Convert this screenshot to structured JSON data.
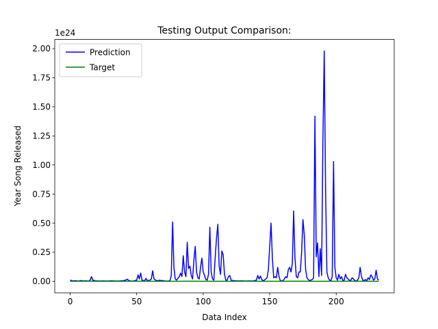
{
  "chart_data": {
    "type": "line",
    "title": "Testing Output Comparison:",
    "xlabel": "Data Index",
    "ylabel": "Year Song Released",
    "y_scale_label": "1e24",
    "xlim": [
      -11.6,
      243.6
    ],
    "ylim": [
      -0.099,
      2.079
    ],
    "x_ticks": [
      0,
      50,
      100,
      150,
      200
    ],
    "x_tick_labels": [
      "0",
      "50",
      "100",
      "150",
      "200"
    ],
    "y_ticks": [
      0.0,
      0.25,
      0.5,
      0.75,
      1.0,
      1.25,
      1.5,
      1.75,
      2.0
    ],
    "y_tick_labels": [
      "0.00",
      "0.25",
      "0.50",
      "0.75",
      "1.00",
      "1.25",
      "1.50",
      "1.75",
      "2.00"
    ],
    "grid": false,
    "legend_position": "upper-left",
    "series": [
      {
        "name": "Prediction",
        "color": "#0000ff",
        "points": [
          [
            0,
            0.01
          ],
          [
            2,
            0.003
          ],
          [
            4,
            0.005
          ],
          [
            6,
            0.002
          ],
          [
            8,
            0.006
          ],
          [
            10,
            0.003
          ],
          [
            12,
            0.004
          ],
          [
            14,
            0.002
          ],
          [
            15,
            0.01
          ],
          [
            16,
            0.04
          ],
          [
            17,
            0.01
          ],
          [
            19,
            0.004
          ],
          [
            22,
            0.002
          ],
          [
            25,
            0.003
          ],
          [
            28,
            0.002
          ],
          [
            31,
            0.004
          ],
          [
            34,
            0.002
          ],
          [
            37,
            0.003
          ],
          [
            40,
            0.005
          ],
          [
            42,
            0.012
          ],
          [
            43,
            0.018
          ],
          [
            44,
            0.006
          ],
          [
            46,
            0.002
          ],
          [
            48,
            0.004
          ],
          [
            50,
            0.01
          ],
          [
            51,
            0.055
          ],
          [
            52,
            0.02
          ],
          [
            53,
            0.07
          ],
          [
            54,
            0.01
          ],
          [
            56,
            0.005
          ],
          [
            57,
            0.025
          ],
          [
            58,
            0.005
          ],
          [
            60,
            0.01
          ],
          [
            61,
            0.02
          ],
          [
            62,
            0.09
          ],
          [
            63,
            0.02
          ],
          [
            65,
            0.004
          ],
          [
            67,
            0.008
          ],
          [
            69,
            0.006
          ],
          [
            71,
            0.003
          ],
          [
            73,
            0.002
          ],
          [
            75,
            0.004
          ],
          [
            76,
            0.05
          ],
          [
            77,
            0.51
          ],
          [
            78,
            0.12
          ],
          [
            79,
            0.02
          ],
          [
            80,
            0.01
          ],
          [
            82,
            0.04
          ],
          [
            83,
            0.07
          ],
          [
            84,
            0.04
          ],
          [
            85,
            0.22
          ],
          [
            86,
            0.08
          ],
          [
            87,
            0.04
          ],
          [
            88,
            0.335
          ],
          [
            89,
            0.11
          ],
          [
            90,
            0.13
          ],
          [
            91,
            0.05
          ],
          [
            92,
            0.02
          ],
          [
            93,
            0.18
          ],
          [
            94,
            0.3
          ],
          [
            95,
            0.08
          ],
          [
            96,
            0.03
          ],
          [
            97,
            0.02
          ],
          [
            98,
            0.12
          ],
          [
            99,
            0.2
          ],
          [
            100,
            0.08
          ],
          [
            101,
            0.05
          ],
          [
            102,
            0.015
          ],
          [
            103,
            0.01
          ],
          [
            104,
            0.06
          ],
          [
            105,
            0.465
          ],
          [
            106,
            0.08
          ],
          [
            107,
            0.02
          ],
          [
            108,
            0.01
          ],
          [
            109,
            0.2
          ],
          [
            110,
            0.37
          ],
          [
            111,
            0.49
          ],
          [
            112,
            0.13
          ],
          [
            113,
            0.06
          ],
          [
            114,
            0.26
          ],
          [
            115,
            0.23
          ],
          [
            116,
            0.06
          ],
          [
            117,
            0.01
          ],
          [
            118,
            0.01
          ],
          [
            119,
            0.04
          ],
          [
            120,
            0.05
          ],
          [
            121,
            0.01
          ],
          [
            123,
            0.005
          ],
          [
            126,
            0.003
          ],
          [
            129,
            0.004
          ],
          [
            132,
            0.002
          ],
          [
            135,
            0.003
          ],
          [
            138,
            0.004
          ],
          [
            140,
            0.01
          ],
          [
            141,
            0.05
          ],
          [
            142,
            0.02
          ],
          [
            143,
            0.045
          ],
          [
            144,
            0.015
          ],
          [
            145,
            0.005
          ],
          [
            146,
            0.01
          ],
          [
            147,
            0.02
          ],
          [
            148,
            0.03
          ],
          [
            149,
            0.1
          ],
          [
            150,
            0.3
          ],
          [
            151,
            0.5
          ],
          [
            152,
            0.2
          ],
          [
            153,
            0.03
          ],
          [
            154,
            0.04
          ],
          [
            155,
            0.03
          ],
          [
            156,
            0.12
          ],
          [
            157,
            0.04
          ],
          [
            158,
            0.005
          ],
          [
            159,
            0.003
          ],
          [
            160,
            0.005
          ],
          [
            161,
            0.02
          ],
          [
            162,
            0.04
          ],
          [
            163,
            0.03
          ],
          [
            164,
            0.1
          ],
          [
            165,
            0.12
          ],
          [
            166,
            0.08
          ],
          [
            167,
            0.15
          ],
          [
            168,
            0.605
          ],
          [
            169,
            0.2
          ],
          [
            170,
            0.04
          ],
          [
            171,
            0.03
          ],
          [
            172,
            0.08
          ],
          [
            173,
            0.08
          ],
          [
            174,
            0.25
          ],
          [
            175,
            0.53
          ],
          [
            176,
            0.4
          ],
          [
            177,
            0.1
          ],
          [
            178,
            0.03
          ],
          [
            179,
            0.015
          ],
          [
            180,
            0.005
          ],
          [
            181,
            0.01
          ],
          [
            182,
            0.015
          ],
          [
            183,
            0.03
          ],
          [
            184,
            1.42
          ],
          [
            185,
            0.21
          ],
          [
            186,
            0.33
          ],
          [
            187,
            0.04
          ],
          [
            188,
            0.28
          ],
          [
            189,
            0.05
          ],
          [
            190,
            1.2
          ],
          [
            191,
            1.98
          ],
          [
            192,
            0.8
          ],
          [
            193,
            0.08
          ],
          [
            194,
            0.03
          ],
          [
            195,
            0.01
          ],
          [
            196,
            0.005
          ],
          [
            197,
            0.04
          ],
          [
            198,
            1.03
          ],
          [
            199,
            0.12
          ],
          [
            200,
            0.03
          ],
          [
            201,
            0.01
          ],
          [
            202,
            0.06
          ],
          [
            203,
            0.02
          ],
          [
            204,
            0.04
          ],
          [
            205,
            0.005
          ],
          [
            206,
            0.01
          ],
          [
            207,
            0.06
          ],
          [
            208,
            0.03
          ],
          [
            209,
            0.02
          ],
          [
            210,
            0.005
          ],
          [
            211,
            0.01
          ],
          [
            212,
            0.03
          ],
          [
            213,
            0.02
          ],
          [
            214,
            0.005
          ],
          [
            215,
            0.003
          ],
          [
            216,
            0.01
          ],
          [
            217,
            0.03
          ],
          [
            218,
            0.12
          ],
          [
            219,
            0.04
          ],
          [
            220,
            0.01
          ],
          [
            221,
            0.005
          ],
          [
            222,
            0.015
          ],
          [
            223,
            0.005
          ],
          [
            224,
            0.03
          ],
          [
            225,
            0.015
          ],
          [
            226,
            0.055
          ],
          [
            227,
            0.04
          ],
          [
            228,
            0.01
          ],
          [
            229,
            0.02
          ],
          [
            230,
            0.095
          ],
          [
            231,
            0.02
          ],
          [
            232,
            0.01
          ]
        ]
      },
      {
        "name": "Target",
        "color": "#008000",
        "points": [
          [
            0,
            0.0
          ],
          [
            10,
            0.001
          ],
          [
            20,
            0.0
          ],
          [
            30,
            0.0005
          ],
          [
            40,
            0.0
          ],
          [
            50,
            0.001
          ],
          [
            60,
            0.0
          ],
          [
            70,
            0.0005
          ],
          [
            80,
            0.0
          ],
          [
            90,
            0.001
          ],
          [
            100,
            0.0
          ],
          [
            110,
            0.0005
          ],
          [
            120,
            0.0
          ],
          [
            130,
            0.001
          ],
          [
            140,
            0.0
          ],
          [
            150,
            0.0005
          ],
          [
            160,
            0.0
          ],
          [
            170,
            0.001
          ],
          [
            180,
            0.0
          ],
          [
            190,
            0.0005
          ],
          [
            200,
            0.0
          ],
          [
            210,
            0.001
          ],
          [
            220,
            0.0
          ],
          [
            232,
            0.0
          ]
        ]
      }
    ]
  }
}
